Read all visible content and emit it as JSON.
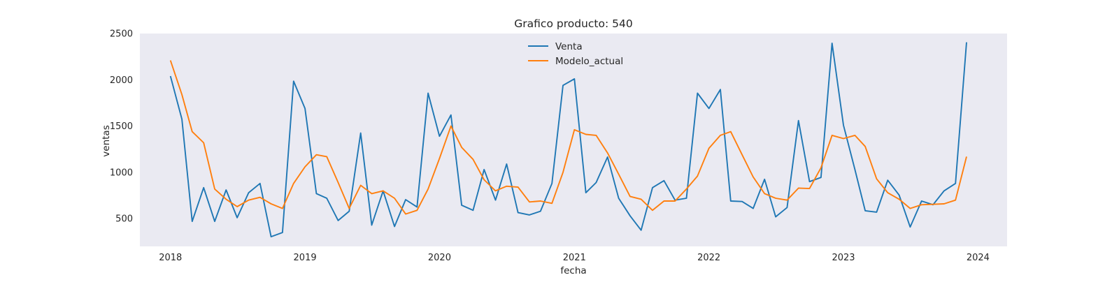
{
  "chart_data": {
    "type": "line",
    "title": "Grafico producto: 540",
    "xlabel": "fecha",
    "ylabel": "ventas",
    "x_axis": "date",
    "x": [
      "2018-01",
      "2018-02",
      "2018-03",
      "2018-04",
      "2018-05",
      "2018-06",
      "2018-07",
      "2018-08",
      "2018-09",
      "2018-10",
      "2018-11",
      "2018-12",
      "2019-01",
      "2019-02",
      "2019-03",
      "2019-04",
      "2019-05",
      "2019-06",
      "2019-07",
      "2019-08",
      "2019-09",
      "2019-10",
      "2019-11",
      "2019-12",
      "2020-01",
      "2020-02",
      "2020-03",
      "2020-04",
      "2020-05",
      "2020-06",
      "2020-07",
      "2020-08",
      "2020-09",
      "2020-10",
      "2020-11",
      "2020-12",
      "2021-01",
      "2021-02",
      "2021-03",
      "2021-04",
      "2021-05",
      "2021-06",
      "2021-07",
      "2021-08",
      "2021-09",
      "2021-10",
      "2021-11",
      "2021-12",
      "2022-01",
      "2022-02",
      "2022-03",
      "2022-04",
      "2022-05",
      "2022-06",
      "2022-07",
      "2022-08",
      "2022-09",
      "2022-10",
      "2022-11",
      "2022-12",
      "2023-01",
      "2023-02",
      "2023-03",
      "2023-04",
      "2023-05",
      "2023-06",
      "2023-07",
      "2023-08",
      "2023-09",
      "2023-10",
      "2023-11",
      "2023-12"
    ],
    "series": [
      {
        "name": "Venta",
        "color": "#1f77b4",
        "values": [
          2040,
          1575,
          470,
          835,
          470,
          810,
          510,
          780,
          880,
          305,
          350,
          1985,
          1690,
          770,
          720,
          480,
          580,
          1425,
          430,
          800,
          415,
          705,
          625,
          1855,
          1390,
          1620,
          645,
          590,
          1030,
          700,
          1090,
          565,
          540,
          580,
          880,
          1940,
          2010,
          780,
          890,
          1165,
          720,
          530,
          375,
          835,
          910,
          700,
          720,
          1855,
          1690,
          1895,
          690,
          685,
          610,
          925,
          520,
          620,
          1560,
          900,
          945,
          2395,
          1510,
          1030,
          585,
          570,
          915,
          755,
          410,
          690,
          650,
          800,
          880,
          2405
        ]
      },
      {
        "name": "Modelo_actual",
        "color": "#ff7f0e",
        "values": [
          2210,
          1840,
          1440,
          1320,
          820,
          710,
          630,
          700,
          730,
          660,
          610,
          880,
          1060,
          1190,
          1170,
          890,
          610,
          860,
          770,
          800,
          720,
          550,
          590,
          820,
          1150,
          1500,
          1270,
          1140,
          920,
          800,
          850,
          840,
          680,
          690,
          665,
          1000,
          1460,
          1410,
          1400,
          1210,
          980,
          740,
          710,
          590,
          690,
          690,
          820,
          960,
          1260,
          1400,
          1440,
          1190,
          950,
          770,
          720,
          700,
          830,
          825,
          1050,
          1400,
          1365,
          1400,
          1280,
          930,
          780,
          710,
          610,
          650,
          655,
          660,
          700,
          1170
        ]
      }
    ],
    "xticks": [
      "2018",
      "2019",
      "2020",
      "2021",
      "2022",
      "2023",
      "2024"
    ],
    "yticks": [
      "500",
      "1000",
      "1500",
      "2000",
      "2500"
    ],
    "ylim": [
      200,
      2500
    ],
    "xlim": [
      "2017-10-10",
      "2024-03-20"
    ],
    "grid": false,
    "legend_position": "upper center",
    "plot_background": "#eaeaf2"
  }
}
